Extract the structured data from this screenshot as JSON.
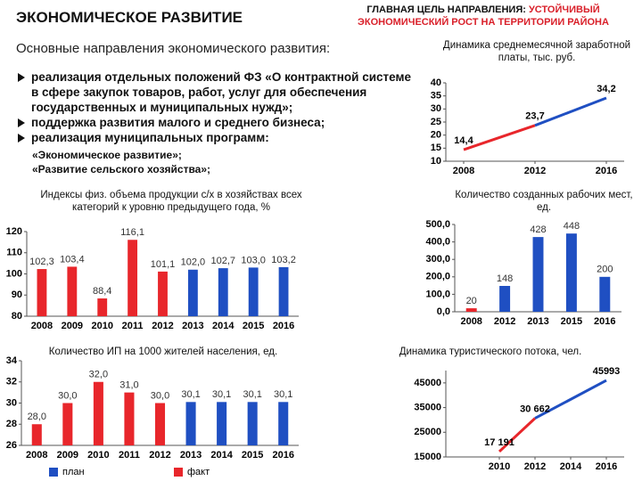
{
  "header": {
    "title": "ЭКОНОМИЧЕСКОЕ РАЗВИТИЕ",
    "goal_label": "ГЛАВНАЯ ЦЕЛЬ НАПРАВЛЕНИЯ:",
    "goal_text": "УСТОЙЧИВЫЙ ЭКОНОМИЧЕСКИЙ РОСТ НА ТЕРРИТОРИИ РАЙОНА"
  },
  "directions": {
    "heading": "Основные направления экономического развития:",
    "items": [
      "реализация отдельных положений ФЗ «О контрактной системе в сфере закупок товаров, работ, услуг для обеспечения государственных и муниципальных нужд»;",
      "поддержка развития малого и среднего бизнеса;",
      "реализация муниципальных программ:"
    ],
    "programs": [
      "«Экономическое развитие»;",
      "«Развитие сельского хозяйства»;"
    ]
  },
  "chart_data": [
    {
      "type": "line",
      "title": "Динамика среднемесячной заработной платы, тыс. руб.",
      "x": [
        2008,
        2012,
        2016
      ],
      "values": [
        14.4,
        23.7,
        34.2
      ],
      "value_labels": [
        "14,4",
        "23,7",
        "34,2"
      ],
      "segment_colors": [
        "#e8262b",
        "#1f4fc2"
      ],
      "xlim": [
        2007,
        2017
      ],
      "xticks": [
        2008,
        2012,
        2016
      ],
      "ylim": [
        10,
        40
      ],
      "yticks": [
        10,
        15,
        20,
        25,
        30,
        35,
        40
      ]
    },
    {
      "type": "bar",
      "title": "Индексы физ. объема продукции с/х в хозяйствах всех категорий к уровню предыдущего года, %",
      "categories": [
        "2008",
        "2009",
        "2010",
        "2011",
        "2012",
        "2013",
        "2014",
        "2015",
        "2016"
      ],
      "values": [
        102.3,
        103.4,
        88.4,
        116.1,
        101.1,
        102.0,
        102.7,
        103.0,
        103.2
      ],
      "value_labels": [
        "102,3",
        "103,4",
        "88,4",
        "116,1",
        "101,1",
        "102,0",
        "102,7",
        "103,0",
        "103,2"
      ],
      "colors": [
        "#e8262b",
        "#e8262b",
        "#e8262b",
        "#e8262b",
        "#e8262b",
        "#1f4fc2",
        "#1f4fc2",
        "#1f4fc2",
        "#1f4fc2"
      ],
      "ylim": [
        80,
        120
      ],
      "yticks": [
        80,
        90,
        100,
        110,
        120
      ]
    },
    {
      "type": "bar",
      "title": "Количество созданных рабочих мест, ед.",
      "categories": [
        "2008",
        "2012",
        "2013",
        "2015",
        "2016"
      ],
      "values": [
        20,
        148,
        428,
        448,
        200
      ],
      "colors": [
        "#e8262b",
        "#1f4fc2",
        "#1f4fc2",
        "#1f4fc2",
        "#1f4fc2"
      ],
      "ylim": [
        0,
        500
      ],
      "yticks": [
        {
          "value": 0,
          "label": "0,0"
        },
        {
          "value": 100,
          "label": "100,0"
        },
        {
          "value": 200,
          "label": "200,0"
        },
        {
          "value": 300,
          "label": "300,0"
        },
        {
          "value": 400,
          "label": "400,0"
        },
        {
          "value": 500,
          "label": "500,0"
        }
      ]
    },
    {
      "type": "bar",
      "title": "Количество ИП на 1000 жителей населения, ед.",
      "categories": [
        "2008",
        "2009",
        "2010",
        "2011",
        "2012",
        "2013",
        "2014",
        "2015",
        "2016"
      ],
      "values": [
        28.0,
        30.0,
        32.0,
        31.0,
        30.0,
        30.1,
        30.1,
        30.1,
        30.1
      ],
      "value_labels": [
        "28,0",
        "30,0",
        "32,0",
        "31,0",
        "30,0",
        "30,1",
        "30,1",
        "30,1",
        "30,1"
      ],
      "colors": [
        "#e8262b",
        "#e8262b",
        "#e8262b",
        "#e8262b",
        "#e8262b",
        "#1f4fc2",
        "#1f4fc2",
        "#1f4fc2",
        "#1f4fc2"
      ],
      "ylim": [
        26,
        34
      ],
      "yticks": [
        26,
        28,
        30,
        32,
        34
      ],
      "legend": [
        {
          "name": "план",
          "color": "#1f4fc2"
        },
        {
          "name": "факт",
          "color": "#e8262b"
        }
      ]
    },
    {
      "type": "line",
      "title": "Динамика туристического потока, чел.",
      "x": [
        2010,
        2012,
        2016
      ],
      "values": [
        17191,
        30662,
        45993
      ],
      "value_labels": [
        "17 191",
        "30 662",
        "45993"
      ],
      "segment_colors": [
        "#e8262b",
        "#1f4fc2"
      ],
      "xlim": [
        2007,
        2017
      ],
      "xticks": [
        2010,
        2012,
        2014,
        2016
      ],
      "ylim": [
        15000,
        50000
      ],
      "yticks": [
        15000,
        25000,
        35000,
        45000
      ]
    }
  ]
}
